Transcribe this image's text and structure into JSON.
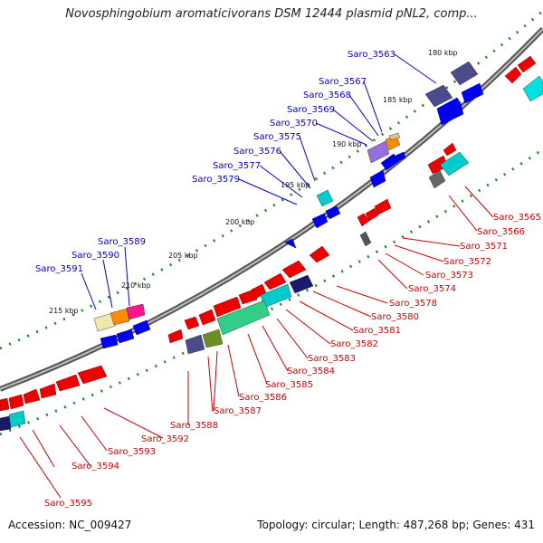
{
  "title": "Novosphingobium aromaticivorans DSM 12444 plasmid pNL2, comp...",
  "footer": {
    "accession": "Accession: NC_009427",
    "summary": "Topology: circular; Length: 487,268 bp; Genes: 431"
  },
  "kbp_labels": [
    "180 kbp",
    "185 kbp",
    "190 kbp",
    "195 kbp",
    "200 kbp",
    "205 kbp",
    "210 kbp",
    "215 kbp"
  ],
  "genes_forward": [
    "Saro_3563",
    "Saro_3567",
    "Saro_3568",
    "Saro_3569",
    "Saro_3570",
    "Saro_3575",
    "Saro_3576",
    "Saro_3577",
    "Saro_3579",
    "Saro_3589",
    "Saro_3590",
    "Saro_3591"
  ],
  "genes_reverse": [
    "Saro_3565",
    "Saro_3566",
    "Saro_3571",
    "Saro_3572",
    "Saro_3573",
    "Saro_3574",
    "Saro_3578",
    "Saro_3580",
    "Saro_3581",
    "Saro_3582",
    "Saro_3583",
    "Saro_3584",
    "Saro_3585",
    "Saro_3586",
    "Saro_3587",
    "Saro_3588",
    "Saro_3592",
    "Saro_3593",
    "Saro_3594",
    "Saro_3595"
  ],
  "colors": {
    "backbone": "#8a8a8a",
    "forward_gene": "#0000ee",
    "reverse_gene": "#ee0000",
    "forward_label": "#0000cc",
    "reverse_label": "#cc0000",
    "gc_dots": "#228b22",
    "cog_cyan": "#00cccc",
    "cog_slate": "#4a4a8c",
    "cog_pink": "#ff1493",
    "cog_orange": "#ff8c00",
    "cog_khaki": "#eee8aa",
    "cog_green": "#32cd88",
    "cog_olive": "#6b8e23",
    "cog_purple": "#9370db",
    "cog_gray": "#666666",
    "cog_navy": "#191970"
  }
}
